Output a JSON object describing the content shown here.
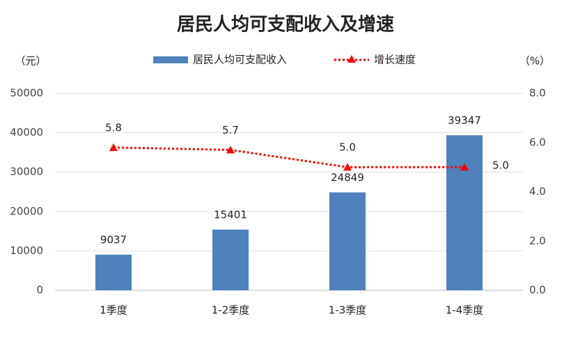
{
  "chart_data": {
    "type": "bar",
    "title": "居民人均可支配收入及增速",
    "ylabel": "（元）",
    "y2label": "（%）",
    "categories": [
      "1季度",
      "1-2季度",
      "1-3季度",
      "1-4季度"
    ],
    "series": [
      {
        "name": "居民人均可支配收入",
        "type": "bar",
        "color": "#4f81bd",
        "values": [
          9037,
          15401,
          24849,
          39347
        ]
      },
      {
        "name": "增长速度",
        "type": "line",
        "axis": "y2",
        "color": "#ff0000",
        "values": [
          5.8,
          5.7,
          5.0,
          5.0
        ],
        "value_labels": [
          "5.8",
          "5.7",
          "5.0",
          "5.0"
        ]
      }
    ],
    "ylim": [
      0,
      50000
    ],
    "yticks": [
      0,
      10000,
      20000,
      30000,
      40000,
      50000
    ],
    "y2lim": [
      0,
      8
    ],
    "y2ticks": [
      {
        "value": 0,
        "label": "0.0"
      },
      {
        "value": 2,
        "label": "2.0"
      },
      {
        "value": 4,
        "label": "4.0"
      },
      {
        "value": 6,
        "label": "6.0"
      },
      {
        "value": 8,
        "label": "8.0"
      }
    ],
    "grid": true
  }
}
